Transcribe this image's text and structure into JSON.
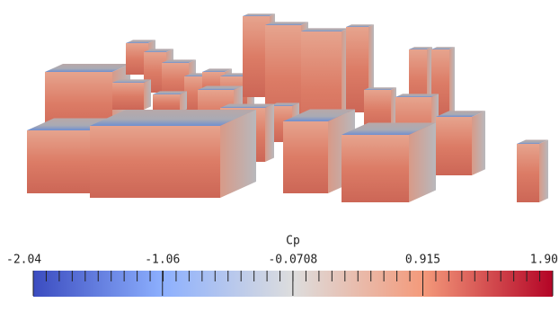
{
  "colorbar": {
    "title": "Cp",
    "range": [
      -2.04,
      1.9
    ],
    "ticks": [
      -2.04,
      -1.06,
      -0.0708,
      0.915,
      {
        "value": 1.9,
        "label": "1.90"
      }
    ],
    "colors": [
      "#3b4cc0",
      "#8db0fe",
      "#dddddd",
      "#f49a7b",
      "#b40426"
    ]
  }
}
